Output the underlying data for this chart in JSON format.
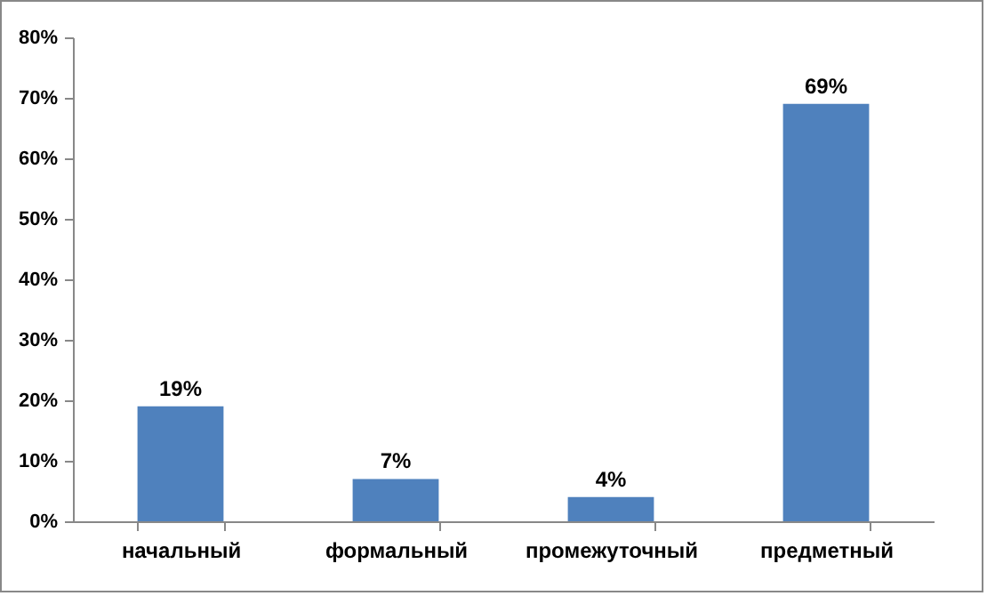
{
  "chart_data": {
    "type": "bar",
    "categories": [
      "начальный",
      "формальный",
      "промежуточный",
      "предметный"
    ],
    "values": [
      19,
      7,
      4,
      69
    ],
    "color": "#4f81bd",
    "value_labels": [
      "19%",
      "7%",
      "4%",
      "69%"
    ],
    "ylim": [
      0,
      80
    ],
    "yticks": [
      {
        "value": 0,
        "label": "0%"
      },
      {
        "value": 10,
        "label": "10%"
      },
      {
        "value": 20,
        "label": "20%"
      },
      {
        "value": 30,
        "label": "30%"
      },
      {
        "value": 40,
        "label": "40%"
      },
      {
        "value": 50,
        "label": "50%"
      },
      {
        "value": 60,
        "label": "60%"
      },
      {
        "value": 70,
        "label": "70%"
      },
      {
        "value": 80,
        "label": "80%"
      }
    ],
    "grid": false,
    "legend": false
  }
}
